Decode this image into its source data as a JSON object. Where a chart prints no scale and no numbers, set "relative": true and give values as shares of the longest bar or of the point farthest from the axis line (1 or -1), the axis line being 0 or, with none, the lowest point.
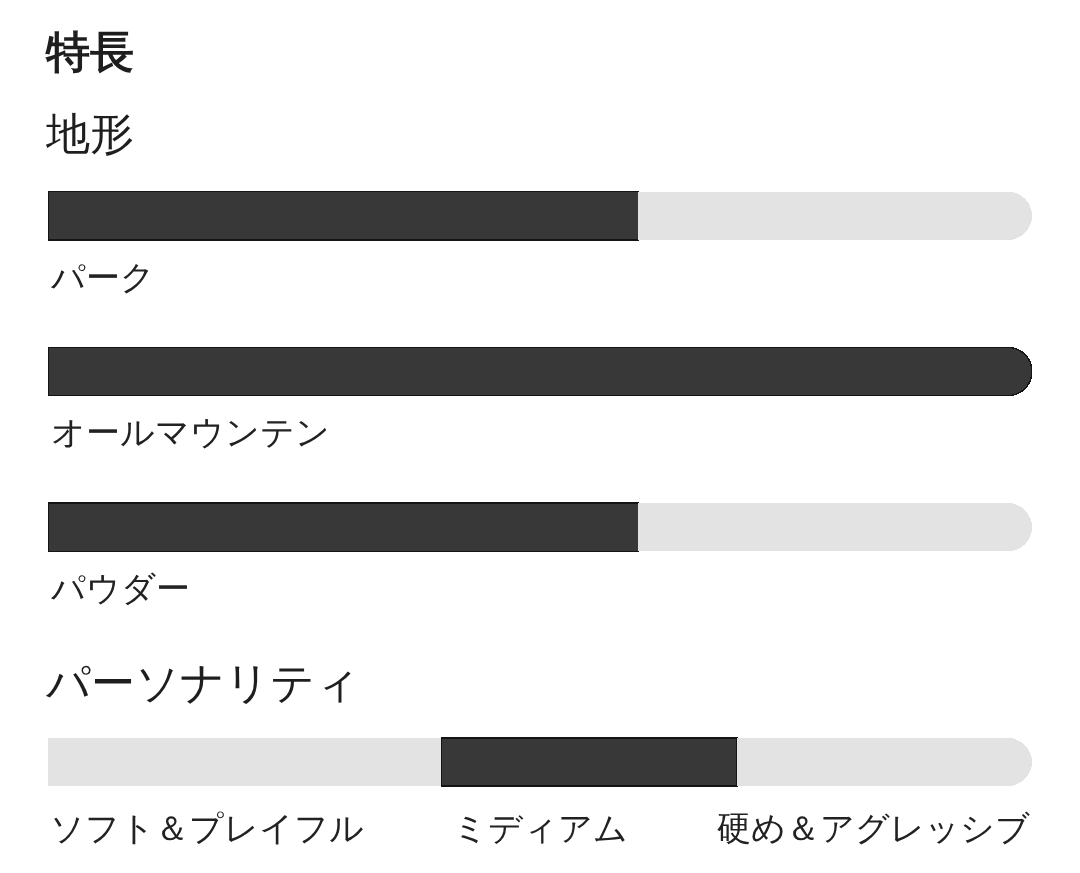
{
  "chart_data": [
    {
      "type": "bar",
      "title": "特長",
      "subtitle": "地形",
      "orientation": "horizontal",
      "stacked": true,
      "relative": true,
      "categories": [
        "パーク",
        "オールマウンテン",
        "パウダー"
      ],
      "series": [
        {
          "color": "#383838",
          "values": [
            0.6,
            1,
            0.6
          ]
        },
        {
          "color": "#e3e3e3",
          "values": [
            0.4,
            0,
            0.4
          ]
        }
      ]
    },
    {
      "type": "bar",
      "title": "パーソナリティ",
      "orientation": "horizontal",
      "stacked": true,
      "relative": true,
      "categories": [
        null
      ],
      "series": [
        {
          "color": "#e3e3e3",
          "values": [
            0.4
          ]
        },
        {
          "color": "#383838",
          "values": [
            0.3
          ]
        },
        {
          "color": "#e3e3e3",
          "values": [
            0.3
          ]
        }
      ],
      "annotations": [
        "ソフト＆プレイフル",
        "ミディアム",
        "硬め＆アグレッシブ"
      ]
    }
  ]
}
